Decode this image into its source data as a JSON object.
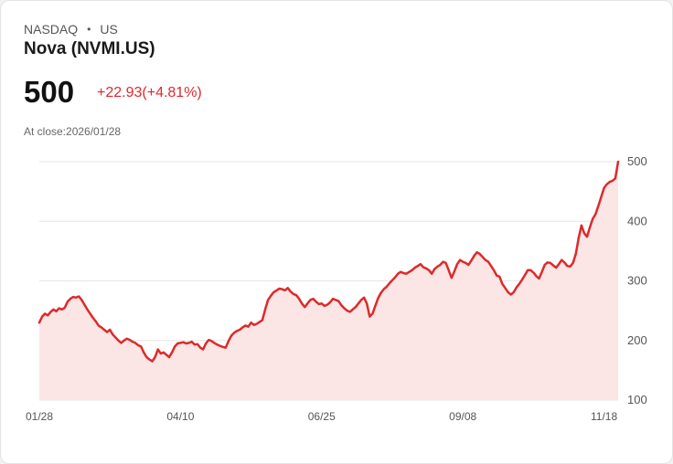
{
  "header": {
    "exchange": "NASDAQ",
    "separator": "•",
    "region": "US",
    "title": "Nova (NVMI.US)"
  },
  "quote": {
    "price": "500",
    "change": "+22.93",
    "change_pct": "(+4.81%)",
    "close_label": "At close:",
    "close_date": "2026/01/28"
  },
  "colors": {
    "line": "#dd2a2a",
    "fill": "#fbe5e5",
    "grid": "#e6e6e6"
  },
  "chart_data": {
    "type": "area",
    "title": "",
    "xlabel": "",
    "ylabel": "",
    "ylim": [
      100,
      500
    ],
    "ticks": [
      100,
      200,
      300,
      400,
      500
    ],
    "x_tick_labels": [
      "01/28",
      "04/10",
      "06/25",
      "09/08",
      "11/18"
    ],
    "x_tick_indices": [
      0,
      50,
      100,
      150,
      200
    ],
    "values": [
      230,
      240,
      245,
      242,
      248,
      252,
      249,
      254,
      252,
      255,
      265,
      270,
      273,
      272,
      274,
      268,
      260,
      252,
      245,
      238,
      232,
      225,
      222,
      218,
      214,
      218,
      210,
      205,
      200,
      196,
      200,
      203,
      201,
      198,
      196,
      192,
      190,
      180,
      172,
      168,
      165,
      172,
      185,
      178,
      180,
      176,
      172,
      180,
      190,
      195,
      196,
      197,
      195,
      196,
      198,
      193,
      194,
      188,
      185,
      195,
      201,
      199,
      196,
      193,
      191,
      189,
      188,
      199,
      208,
      213,
      216,
      218,
      222,
      225,
      223,
      230,
      226,
      228,
      231,
      234,
      252,
      268,
      275,
      281,
      284,
      287,
      286,
      284,
      288,
      282,
      278,
      276,
      270,
      262,
      256,
      262,
      268,
      270,
      265,
      261,
      262,
      258,
      260,
      264,
      270,
      268,
      266,
      259,
      254,
      250,
      248,
      252,
      256,
      262,
      268,
      272,
      262,
      240,
      245,
      258,
      271,
      280,
      286,
      290,
      296,
      301,
      306,
      312,
      315,
      313,
      312,
      315,
      318,
      322,
      325,
      328,
      323,
      321,
      318,
      312,
      320,
      324,
      327,
      332,
      330,
      318,
      305,
      316,
      328,
      335,
      332,
      330,
      327,
      334,
      342,
      348,
      345,
      340,
      335,
      332,
      325,
      318,
      309,
      307,
      295,
      288,
      281,
      277,
      281,
      289,
      295,
      302,
      310,
      318,
      318,
      314,
      308,
      304,
      315,
      327,
      331,
      330,
      326,
      322,
      328,
      335,
      331,
      325,
      324,
      330,
      345,
      372,
      393,
      380,
      374,
      390,
      404,
      412,
      426,
      441,
      456,
      462,
      466,
      468,
      472,
      500
    ]
  }
}
